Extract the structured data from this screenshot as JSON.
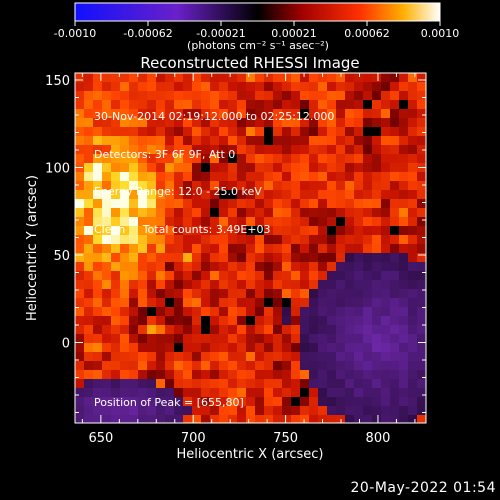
{
  "colorbar": {
    "ticks": [
      "-0.0010",
      "-0.00062",
      "-0.00021",
      "0.00021",
      "0.00062",
      "0.0010"
    ],
    "units_label": "(photons cm⁻² s⁻¹ asec⁻²)",
    "range": [
      -0.001,
      0.001
    ]
  },
  "chart_data": {
    "type": "heatmap",
    "title": "Reconstructed RHESSI Image",
    "xlabel": "Heliocentric X (arcsec)",
    "ylabel": "Heliocentric Y (arcsec)",
    "xlim": [
      636,
      826
    ],
    "ylim": [
      -46,
      154
    ],
    "x_ticks": [
      650,
      700,
      750,
      800
    ],
    "y_ticks": [
      0,
      50,
      100,
      150
    ],
    "colormap": "RHESSI (violet-black-red-yellow-white)",
    "peak_position": [
      655,
      80
    ],
    "annotations": [
      "30-Nov-2014 02:19:12.000 to 02:25:12.000",
      "Detectors: 3F 6F 9F, Att 0",
      "Energy Range: 12.0 - 25.0 keV",
      "Clean     Total counts: 3.49E+03"
    ],
    "peak_label": "Position of Peak = [655,80]"
  },
  "footer": {
    "date": "20-May-2022 01:54"
  }
}
